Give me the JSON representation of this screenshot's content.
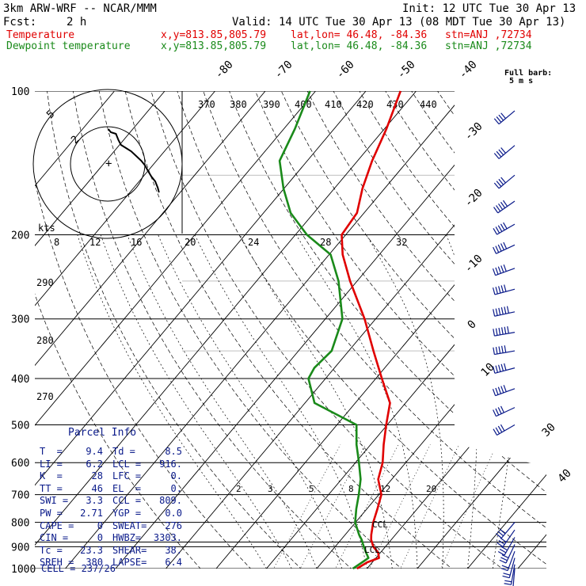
{
  "header": {
    "model": "3km ARW-WRF -- NCAR/MMM",
    "init": "Init: 12 UTC Tue 30 Apr 13",
    "fcst_label": "Fcst:",
    "fcst_value": "2 h",
    "valid": "Valid: 14 UTC Tue 30 Apr 13 (08 MDT Tue 30 Apr 13)"
  },
  "legend": {
    "temperature": {
      "name": "Temperature",
      "xy": "x,y=813.85,805.79",
      "latlon": "lat,lon= 46.48, -84.36",
      "stn": "stn=ANJ ,72734",
      "color": "#e00000"
    },
    "dewpoint": {
      "name": "Dewpoint temperature",
      "xy": "x,y=813.85,805.79",
      "latlon": "lat,lon= 46.48, -84.36",
      "stn": "stn=ANJ ,72734",
      "color": "#1a8a1a"
    }
  },
  "full_barb": {
    "line1": "Full barb:",
    "line2": "5 m s"
  },
  "parcel_info": {
    "title": "Parcel Info",
    "rows": [
      [
        "T  =",
        "9.4",
        "Td =",
        "8.5"
      ],
      [
        "LI =",
        "6.2",
        "LCL =",
        "916."
      ],
      [
        "K  =",
        "28",
        "LFC =",
        "0."
      ],
      [
        "TT =",
        "46",
        "EL  =",
        "0."
      ],
      [
        "SWI =",
        "3.3",
        "CCL =",
        "809."
      ],
      [
        "PW =",
        "2.71",
        "YGP =",
        "0.0"
      ],
      [
        "CAPE =",
        "0",
        "SWEAT=",
        "276"
      ],
      [
        "CIN =",
        "0",
        "HWBZ=",
        "3303."
      ],
      [
        "Tc =",
        "23.3",
        "SHEAR=",
        "38."
      ],
      [
        "SREH =",
        "380",
        "LAPSE=",
        "6.4"
      ]
    ],
    "cell": "CELL = 237/26"
  },
  "hodograph": {
    "units": "kts",
    "ring_labels": [
      "5",
      "2"
    ],
    "center_mark": "+",
    "points": [
      [
        8,
        -12
      ],
      [
        10,
        -10
      ],
      [
        11,
        -6
      ],
      [
        15,
        -4
      ],
      [
        18,
        -2
      ],
      [
        20,
        2
      ],
      [
        22,
        6
      ],
      [
        25,
        10
      ],
      [
        28,
        14
      ],
      [
        31,
        17
      ],
      [
        34,
        19
      ],
      [
        38,
        22
      ],
      [
        41,
        25
      ],
      [
        45,
        27
      ],
      [
        48,
        28
      ]
    ]
  },
  "ccl_label": "CCL",
  "lcl_label": "LCL",
  "chart_data": {
    "type": "line",
    "title": "",
    "ylabel": "",
    "xlabel": "",
    "y_scale": "log-pressure",
    "ylim": [
      1000,
      100
    ],
    "pressure_ticks": [
      100,
      200,
      300,
      400,
      500,
      600,
      700,
      800,
      900,
      1000
    ],
    "isotherm_labels": [
      "-80",
      "-70",
      "-60",
      "-50",
      "-40",
      "-30",
      "-20",
      "-10",
      "0",
      "10",
      "30",
      "40"
    ],
    "theta_e_labels": [
      "370",
      "380",
      "390",
      "400",
      "410",
      "420",
      "430",
      "440"
    ],
    "mixing_ratio_upper_labels": [
      "8",
      "12",
      "16",
      "20",
      "24",
      "28",
      "32"
    ],
    "mixing_ratio_lower_labels": [
      "2",
      "3",
      "5",
      "8",
      "12",
      "20"
    ],
    "dry_adiabat_labels": [
      "290",
      "280",
      "270"
    ],
    "series": [
      {
        "name": "Temperature",
        "color": "#e00000",
        "pressure": [
          1000,
          970,
          950,
          925,
          900,
          870,
          850,
          800,
          750,
          700,
          650,
          600,
          550,
          500,
          450,
          400,
          350,
          300,
          250,
          220,
          200,
          180,
          160,
          140,
          120,
          100
        ],
        "temperature": [
          8.0,
          9.0,
          10.6,
          9.5,
          7.6,
          6.0,
          5.2,
          3.5,
          2.1,
          0.5,
          -2.7,
          -4.6,
          -7.4,
          -10.2,
          -13.1,
          -18.8,
          -25.1,
          -32.2,
          -41.4,
          -47.3,
          -50.8,
          -51.4,
          -54.4,
          -57.1,
          -59.6,
          -63.1
        ]
      },
      {
        "name": "Dewpoint temperature",
        "color": "#1a8a1a",
        "pressure": [
          1000,
          970,
          950,
          925,
          900,
          870,
          850,
          800,
          750,
          700,
          650,
          600,
          550,
          500,
          450,
          400,
          380,
          350,
          300,
          250,
          220,
          200,
          180,
          160,
          140,
          120,
          100
        ],
        "temperature": [
          7.2,
          8.0,
          8.5,
          7.1,
          5.7,
          4.1,
          2.8,
          -0.1,
          -2.1,
          -4.0,
          -6.2,
          -9.3,
          -12.8,
          -16.1,
          -28.1,
          -33.4,
          -34.0,
          -33.4,
          -36.6,
          -43.7,
          -49.7,
          -57.7,
          -64.6,
          -70.1,
          -75.5,
          -77.8,
          -81.1
        ]
      }
    ],
    "wind_barbs": [
      {
        "p": 110,
        "dir": 230,
        "spd": 18
      },
      {
        "p": 130,
        "dir": 230,
        "spd": 20
      },
      {
        "p": 150,
        "dir": 230,
        "spd": 22
      },
      {
        "p": 170,
        "dir": 235,
        "spd": 24
      },
      {
        "p": 190,
        "dir": 240,
        "spd": 25
      },
      {
        "p": 210,
        "dir": 245,
        "spd": 26
      },
      {
        "p": 235,
        "dir": 250,
        "spd": 27
      },
      {
        "p": 260,
        "dir": 255,
        "spd": 27
      },
      {
        "p": 290,
        "dir": 258,
        "spd": 28
      },
      {
        "p": 320,
        "dir": 260,
        "spd": 28
      },
      {
        "p": 350,
        "dir": 260,
        "spd": 27
      },
      {
        "p": 380,
        "dir": 255,
        "spd": 26
      },
      {
        "p": 420,
        "dir": 250,
        "spd": 24
      },
      {
        "p": 460,
        "dir": 245,
        "spd": 22
      },
      {
        "p": 500,
        "dir": 240,
        "spd": 20
      },
      {
        "p": 800,
        "dir": 220,
        "spd": 16
      },
      {
        "p": 830,
        "dir": 215,
        "spd": 15
      },
      {
        "p": 860,
        "dir": 210,
        "spd": 14
      },
      {
        "p": 890,
        "dir": 205,
        "spd": 13
      },
      {
        "p": 920,
        "dir": 200,
        "spd": 12
      },
      {
        "p": 950,
        "dir": 195,
        "spd": 10
      },
      {
        "p": 980,
        "dir": 190,
        "spd": 8
      },
      {
        "p": 1000,
        "dir": 185,
        "spd": 6
      }
    ]
  }
}
